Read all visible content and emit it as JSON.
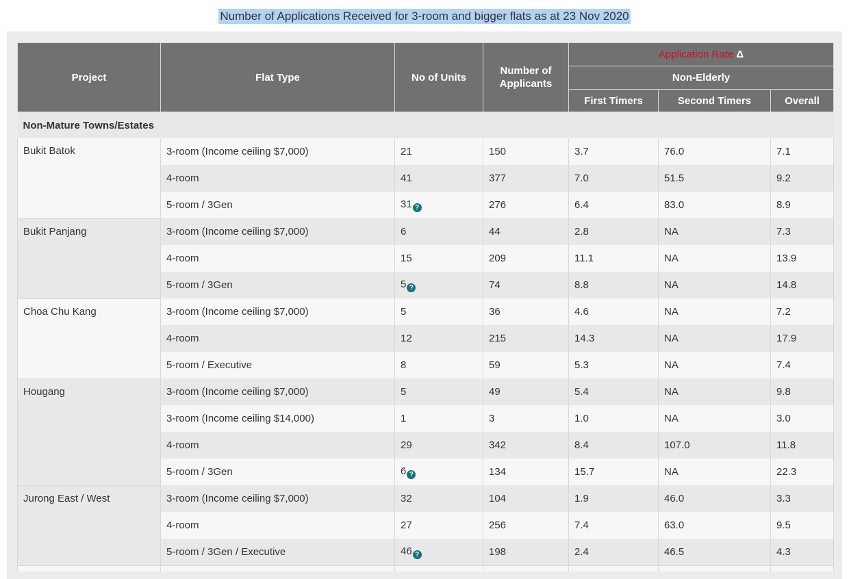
{
  "page_title": "Number of Applications Received for 3-room and bigger flats as at 23 Nov 2020",
  "headers": {
    "project": "Project",
    "flat_type": "Flat Type",
    "units": "No of Units",
    "applicants_line1": "Number of",
    "applicants_line2": "Applicants",
    "application_rate": "Application Rate",
    "delta_symbol": "Δ",
    "non_elderly": "Non-Elderly",
    "first_timers": "First Timers",
    "second_timers": "Second Timers",
    "overall": "Overall"
  },
  "section_label": "Non-Mature Towns/Estates",
  "help_icon_glyph": "?",
  "accent_colors": {
    "header_bg": "#717171",
    "rate_header_text": "#c8102e",
    "help_icon": "#137479"
  },
  "projects": [
    {
      "name": "Bukit Batok",
      "rows": [
        {
          "flat_type": "3-room (Income ceiling $7,000)",
          "units": "21",
          "applicants": "150",
          "first_timers": "3.7",
          "second_timers": "76.0",
          "overall": "7.1"
        },
        {
          "flat_type": "4-room",
          "units": "41",
          "applicants": "377",
          "first_timers": "7.0",
          "second_timers": "51.5",
          "overall": "9.2"
        },
        {
          "flat_type": "5-room / 3Gen",
          "units": "31",
          "applicants": "276",
          "first_timers": "6.4",
          "second_timers": "83.0",
          "overall": "8.9",
          "help": true
        }
      ]
    },
    {
      "name": "Bukit Panjang",
      "rows": [
        {
          "flat_type": "3-room (Income ceiling $7,000)",
          "units": "6",
          "applicants": "44",
          "first_timers": "2.8",
          "second_timers": "NA",
          "overall": "7.3"
        },
        {
          "flat_type": "4-room",
          "units": "15",
          "applicants": "209",
          "first_timers": "11.1",
          "second_timers": "NA",
          "overall": "13.9"
        },
        {
          "flat_type": "5-room / 3Gen",
          "units": "5",
          "applicants": "74",
          "first_timers": "8.8",
          "second_timers": "NA",
          "overall": "14.8",
          "help": true
        }
      ]
    },
    {
      "name": "Choa Chu Kang",
      "rows": [
        {
          "flat_type": "3-room (Income ceiling $7,000)",
          "units": "5",
          "applicants": "36",
          "first_timers": "4.6",
          "second_timers": "NA",
          "overall": "7.2"
        },
        {
          "flat_type": "4-room",
          "units": "12",
          "applicants": "215",
          "first_timers": "14.3",
          "second_timers": "NA",
          "overall": "17.9"
        },
        {
          "flat_type": "5-room / Executive",
          "units": "8",
          "applicants": "59",
          "first_timers": "5.3",
          "second_timers": "NA",
          "overall": "7.4"
        }
      ]
    },
    {
      "name": "Hougang",
      "rows": [
        {
          "flat_type": "3-room (Income ceiling $7,000)",
          "units": "5",
          "applicants": "49",
          "first_timers": "5.4",
          "second_timers": "NA",
          "overall": "9.8"
        },
        {
          "flat_type": "3-room (Income ceiling $14,000)",
          "units": "1",
          "applicants": "3",
          "first_timers": "1.0",
          "second_timers": "NA",
          "overall": "3.0"
        },
        {
          "flat_type": "4-room",
          "units": "29",
          "applicants": "342",
          "first_timers": "8.4",
          "second_timers": "107.0",
          "overall": "11.8"
        },
        {
          "flat_type": "5-room / 3Gen",
          "units": "6",
          "applicants": "134",
          "first_timers": "15.7",
          "second_timers": "NA",
          "overall": "22.3",
          "help": true
        }
      ]
    },
    {
      "name": "Jurong East / West",
      "rows": [
        {
          "flat_type": "3-room (Income ceiling $7,000)",
          "units": "32",
          "applicants": "104",
          "first_timers": "1.9",
          "second_timers": "46.0",
          "overall": "3.3"
        },
        {
          "flat_type": "4-room",
          "units": "27",
          "applicants": "256",
          "first_timers": "7.4",
          "second_timers": "63.0",
          "overall": "9.5"
        },
        {
          "flat_type": "5-room / 3Gen / Executive",
          "units": "46",
          "applicants": "198",
          "first_timers": "2.4",
          "second_timers": "46.5",
          "overall": "4.3",
          "help": true
        }
      ]
    }
  ]
}
